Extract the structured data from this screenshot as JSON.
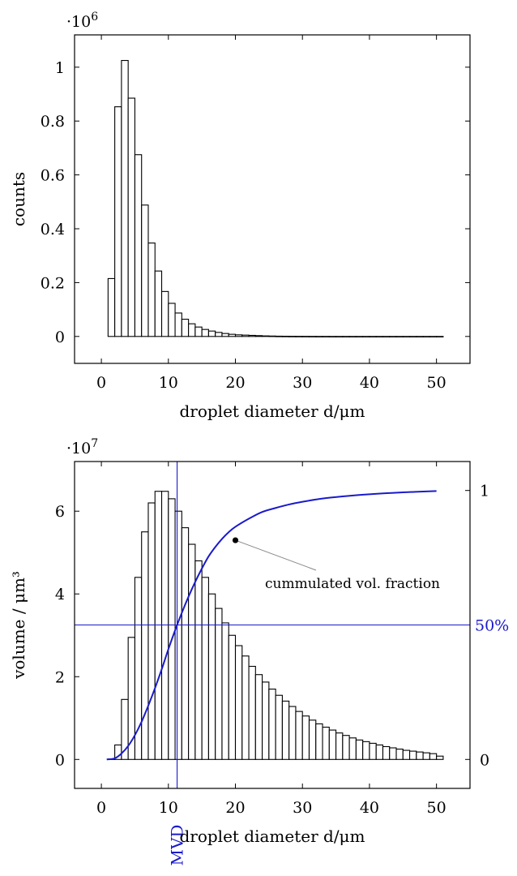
{
  "chart_data": [
    {
      "type": "bar",
      "title": "",
      "xlabel": "droplet diameter d/μm",
      "ylabel": "counts",
      "y_multiplier": "·10^6",
      "xlim": [
        -4,
        55
      ],
      "ylim": [
        -0.1,
        1.12
      ],
      "x_ticks": [
        0,
        10,
        20,
        30,
        40,
        50
      ],
      "y_ticks": [
        0,
        0.2,
        0.4,
        0.6,
        0.8,
        1
      ],
      "bin_start": 1,
      "bin_width": 1,
      "values": [
        0.215,
        0.853,
        1.025,
        0.885,
        0.675,
        0.488,
        0.347,
        0.243,
        0.167,
        0.123,
        0.087,
        0.064,
        0.047,
        0.035,
        0.026,
        0.02,
        0.015,
        0.011,
        0.008,
        0.006,
        0.005,
        0.004,
        0.003,
        0.002,
        0.0015,
        0.001,
        0.0008,
        0.0006,
        0.0005,
        0.0004,
        0.0003,
        0.0002,
        0.0002,
        0.0001,
        0.0001,
        0.0001,
        0.0001,
        0.0001,
        0.0001,
        0.0001,
        0.0001,
        0.0001,
        0.0001,
        0.0001,
        0.0001,
        0.0001,
        0.0001,
        0.0001,
        0.0001,
        0.0001
      ],
      "grid": false
    },
    {
      "type": "bar",
      "title": "",
      "xlabel": "droplet diameter d/μm",
      "ylabel": "volume / μm³",
      "y_multiplier": "·10^7",
      "y2_ticks": [
        0,
        1
      ],
      "y2_labels": [
        "0",
        "1"
      ],
      "xlim": [
        -4,
        55
      ],
      "ylim": [
        -0.7,
        7.2
      ],
      "x_ticks": [
        0,
        10,
        20,
        30,
        40,
        50
      ],
      "y_ticks": [
        0,
        2,
        4,
        6
      ],
      "bin_start": 1,
      "bin_width": 1,
      "values": [
        0.01,
        0.35,
        1.45,
        2.95,
        4.4,
        5.5,
        6.2,
        6.48,
        6.48,
        6.3,
        6.0,
        5.6,
        5.2,
        4.8,
        4.4,
        4.0,
        3.65,
        3.3,
        3.0,
        2.75,
        2.5,
        2.25,
        2.05,
        1.87,
        1.7,
        1.55,
        1.41,
        1.28,
        1.16,
        1.05,
        0.95,
        0.86,
        0.78,
        0.71,
        0.64,
        0.58,
        0.52,
        0.47,
        0.43,
        0.39,
        0.35,
        0.31,
        0.28,
        0.25,
        0.22,
        0.2,
        0.18,
        0.16,
        0.14,
        0.08
      ],
      "cumulative_curve": {
        "name": "cummulated vol. fraction",
        "x": [
          0.8,
          2,
          3,
          4,
          5,
          6,
          7,
          8,
          9,
          10,
          11,
          12,
          13,
          14,
          15,
          16,
          17,
          18,
          19,
          20,
          22,
          24,
          26,
          28,
          30,
          33,
          36,
          40,
          45,
          50
        ],
        "y": [
          0,
          0.004,
          0.022,
          0.05,
          0.09,
          0.14,
          0.2,
          0.265,
          0.335,
          0.41,
          0.48,
          0.545,
          0.605,
          0.66,
          0.71,
          0.755,
          0.79,
          0.82,
          0.845,
          0.865,
          0.895,
          0.92,
          0.935,
          0.948,
          0.958,
          0.97,
          0.978,
          0.986,
          0.993,
          0.998
        ],
        "color": "#1a1acc",
        "marker_x": 20,
        "marker_y": 0.815
      },
      "reference_lines": {
        "half_label": "50%",
        "half_fraction": 0.5,
        "mvd_label": "MVD",
        "mvd_x": 11.3,
        "color": "#1a1acc"
      },
      "grid": false
    }
  ]
}
